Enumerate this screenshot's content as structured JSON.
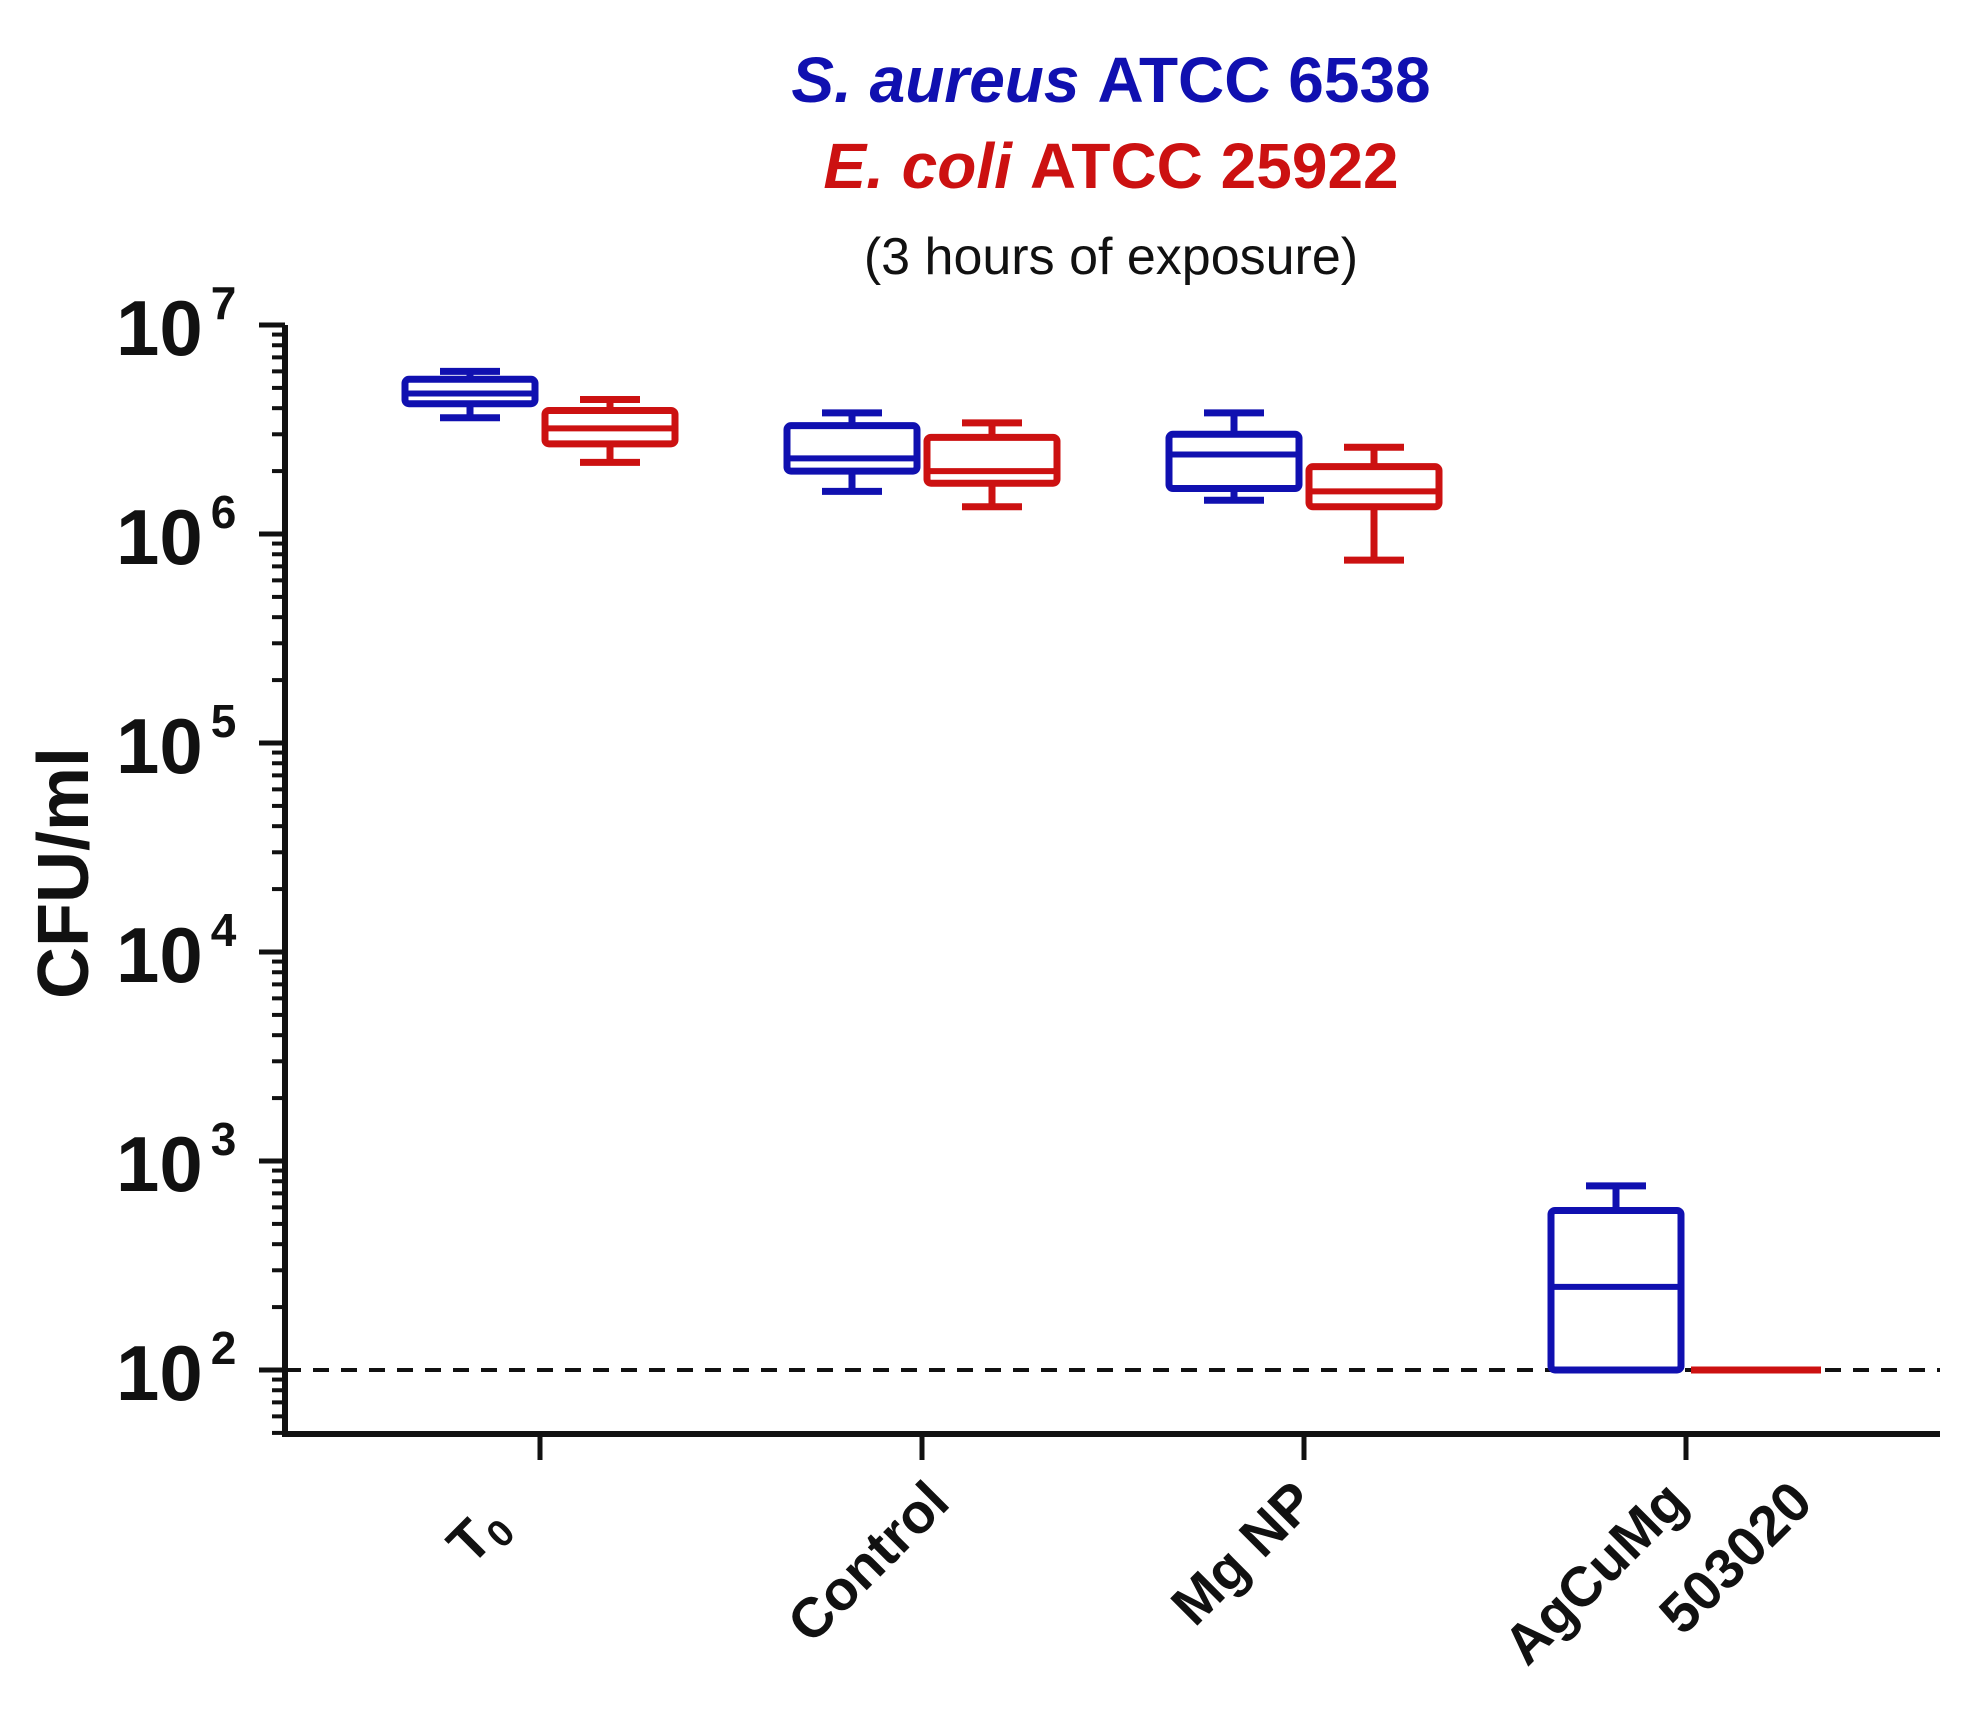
{
  "chart_data": {
    "type": "box",
    "title": {
      "line1": {
        "species": "S. aureus",
        "strain": "ATCC 6538"
      },
      "line2": {
        "species": "E. coli",
        "strain": "ATCC 25922"
      },
      "subtitle": "(3 hours of exposure)"
    },
    "ylabel": "CFU/ml",
    "yscale": "log10",
    "ylim": [
      50,
      10000000
    ],
    "y_ticks": [
      {
        "base": "10",
        "exp": "7",
        "value": 10000000
      },
      {
        "base": "10",
        "exp": "6",
        "value": 1000000
      },
      {
        "base": "10",
        "exp": "5",
        "value": 100000
      },
      {
        "base": "10",
        "exp": "4",
        "value": 10000
      },
      {
        "base": "10",
        "exp": "3",
        "value": 1000
      },
      {
        "base": "10",
        "exp": "2",
        "value": 100
      }
    ],
    "categories": [
      {
        "label": "T",
        "sub": "0"
      },
      {
        "label": "Control",
        "sub": ""
      },
      {
        "label": "Mg NP",
        "sub": ""
      },
      {
        "label": "AgCuMg",
        "line2": "503020"
      }
    ],
    "detection_limit": 100,
    "series": [
      {
        "name": "S. aureus ATCC 6538",
        "color": "#1010b0",
        "boxes": [
          {
            "min": 3600000,
            "q1": 4200000,
            "median": 4700000,
            "q3": 5500000,
            "max": 6000000
          },
          {
            "min": 1600000,
            "q1": 2000000,
            "median": 2300000,
            "q3": 3300000,
            "max": 3800000
          },
          {
            "min": 1450000,
            "q1": 1650000,
            "median": 2400000,
            "q3": 3000000,
            "max": 3800000
          },
          {
            "min": 100,
            "q1": 100,
            "median": 250,
            "q3": 580,
            "max": 760
          }
        ]
      },
      {
        "name": "E. coli ATCC 25922",
        "color": "#cc1111",
        "boxes": [
          {
            "min": 2200000,
            "q1": 2700000,
            "median": 3200000,
            "q3": 3900000,
            "max": 4400000
          },
          {
            "min": 1350000,
            "q1": 1750000,
            "median": 2000000,
            "q3": 2900000,
            "max": 3400000
          },
          {
            "min": 750000,
            "q1": 1350000,
            "median": 1600000,
            "q3": 2100000,
            "max": 2600000
          },
          {
            "min": 100,
            "q1": 100,
            "median": 100,
            "q3": 100,
            "max": 100
          }
        ]
      }
    ]
  }
}
